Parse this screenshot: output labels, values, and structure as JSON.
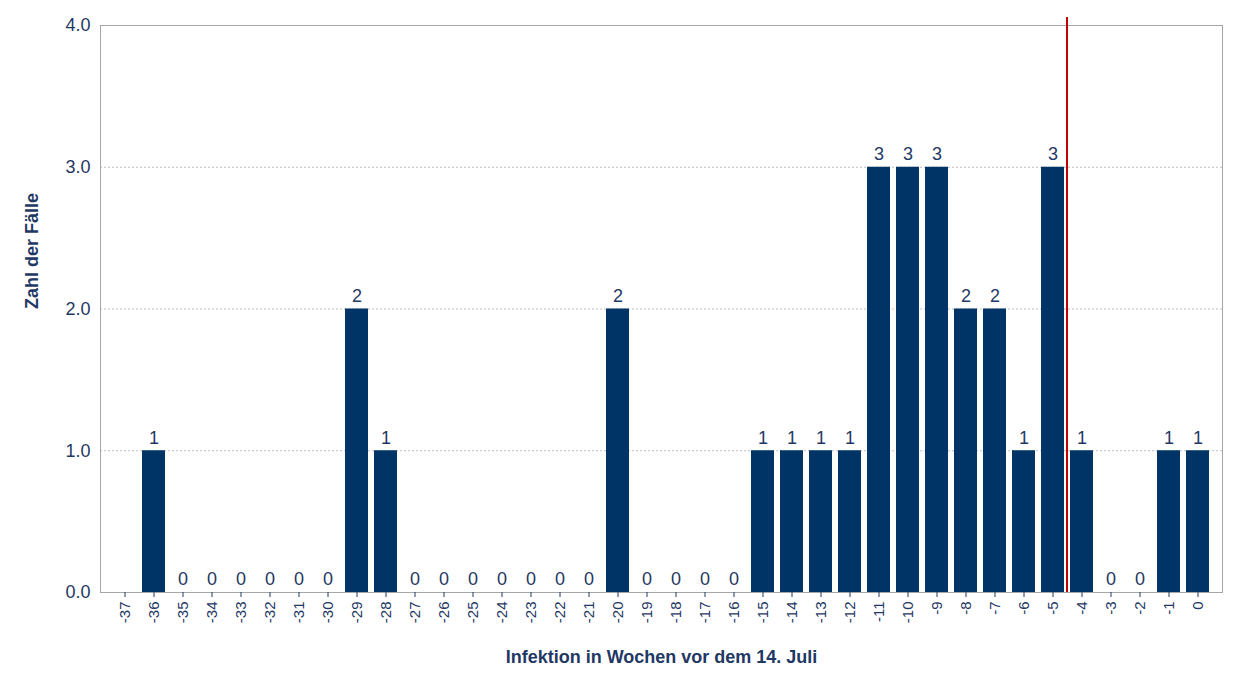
{
  "chart_data": {
    "type": "bar",
    "x_label": "Infektion in Wochen vor dem 14. Juli",
    "y_label": "Zahl der Fälle",
    "categories": [
      -37,
      -36,
      -35,
      -34,
      -33,
      -32,
      -31,
      -30,
      -29,
      -28,
      -27,
      -26,
      -25,
      -24,
      -23,
      -22,
      -21,
      -20,
      -19,
      -18,
      -17,
      -16,
      -15,
      -14,
      -13,
      -12,
      -11,
      -10,
      -9,
      -8,
      -7,
      -6,
      -5,
      -4,
      -3,
      -2,
      -1,
      0
    ],
    "values": [
      null,
      1,
      0,
      0,
      0,
      0,
      0,
      0,
      2,
      1,
      0,
      0,
      0,
      0,
      0,
      0,
      0,
      2,
      0,
      0,
      0,
      0,
      1,
      1,
      1,
      1,
      3,
      3,
      3,
      2,
      2,
      1,
      3,
      1,
      0,
      0,
      1,
      1
    ],
    "color": "#003366",
    "ylim": [
      0,
      4
    ],
    "yticks": [
      0,
      1,
      2,
      3,
      4
    ],
    "grid": true,
    "data_labels": true,
    "reference_line": {
      "between": [
        -5,
        -4
      ],
      "color": "#c00000"
    }
  }
}
